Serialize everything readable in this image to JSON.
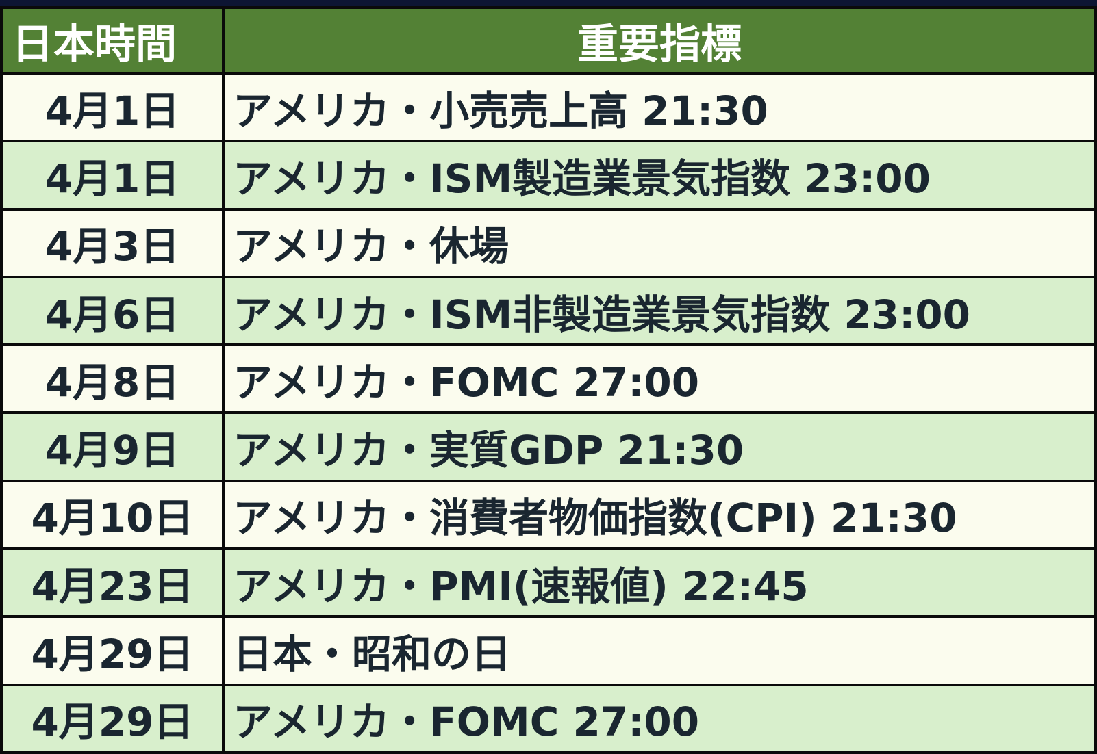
{
  "colors": {
    "header_bg": "#538135",
    "header_text": "#ffffff",
    "row_light": "#fbfcee",
    "row_green": "#d8efcc",
    "text": "#1a2630"
  },
  "headers": [
    "日本時間",
    "重要指標"
  ],
  "rows": [
    {
      "date": "4月1日",
      "event": "アメリカ・小売売上高 21:30"
    },
    {
      "date": "4月1日",
      "event": "アメリカ・ISM製造業景気指数 23:00"
    },
    {
      "date": "4月3日",
      "event": "アメリカ・休場"
    },
    {
      "date": "4月6日",
      "event": "アメリカ・ISM非製造業景気指数 23:00"
    },
    {
      "date": "4月8日",
      "event": "アメリカ・FOMC 27:00"
    },
    {
      "date": "4月9日",
      "event": "アメリカ・実質GDP 21:30"
    },
    {
      "date": "4月10日",
      "event": "アメリカ・消費者物価指数(CPI) 21:30"
    },
    {
      "date": "4月23日",
      "event": "アメリカ・PMI(速報値) 22:45"
    },
    {
      "date": "4月29日",
      "event": "日本・昭和の日"
    },
    {
      "date": "4月29日",
      "event": "アメリカ・FOMC 27:00"
    }
  ]
}
